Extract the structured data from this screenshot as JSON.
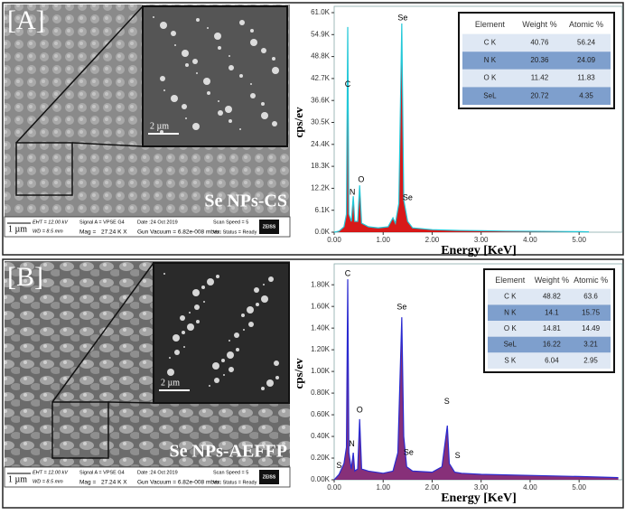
{
  "panels": [
    {
      "label": "[A]",
      "sample": "Se NPs-CS",
      "scale_main": "1 µm",
      "scale_inset": "2 µm",
      "info": [
        "EHT = 12.00 kV",
        "WD = 8.5 mm",
        "Signal A = VPSE G4",
        "Date :24 Oct 2019",
        "Mag = ",
        "27.24 K X",
        "Gun Vacuum = 6.82e-008 mbar",
        "Scan Speed = 5",
        "Vac Status = Ready",
        "ZEISS"
      ]
    },
    {
      "label": "[B]",
      "sample": "Se NPs-AEFFP",
      "scale_main": "1 µm",
      "scale_inset": "2 µm",
      "info": [
        "EHT = 12.00 kV",
        "WD = 8.5 mm",
        "Signal A = VPSE G4",
        "Date :24 Oct 2019",
        "Mag = ",
        "27.24 K X",
        "Gun Vacuum = 6.82e-008 mbar",
        "Scan Speed = 5",
        "Vac Status = Ready",
        "ZEISS"
      ]
    }
  ],
  "chart_data": [
    {
      "type": "area",
      "xlabel": "Energy [KeV]",
      "ylabel": "cps/ev",
      "color": "#22c8d8",
      "fill": "#d40000",
      "x": [
        0.0,
        0.1,
        0.2,
        0.25,
        0.277,
        0.3,
        0.35,
        0.39,
        0.42,
        0.48,
        0.52,
        0.56,
        0.7,
        0.9,
        1.1,
        1.2,
        1.25,
        1.32,
        1.38,
        1.42,
        1.5,
        1.6,
        2.0,
        2.5,
        3.0,
        3.5,
        4.0,
        4.5,
        5.0,
        5.2
      ],
      "values": [
        0,
        300,
        1500,
        5000,
        57000,
        5000,
        3000,
        10000,
        3000,
        3000,
        13000,
        2500,
        1500,
        1200,
        1500,
        4000,
        2500,
        8000,
        58000,
        9000,
        3000,
        1200,
        700,
        500,
        400,
        300,
        250,
        200,
        150,
        100
      ],
      "xlim": [
        0,
        5.9
      ],
      "ylim": [
        0,
        61000
      ],
      "xticks": [
        {
          "value": 0,
          "label": "0.00"
        },
        {
          "value": 1,
          "label": "1.00"
        },
        {
          "value": 2,
          "label": "2.00"
        },
        {
          "value": 3,
          "label": "3.00"
        },
        {
          "value": 4,
          "label": "4.00"
        },
        {
          "value": 5,
          "label": "5.00"
        }
      ],
      "yticks": [
        {
          "value": 0,
          "label": "0.0K"
        },
        {
          "value": 6100,
          "label": "6.1K"
        },
        {
          "value": 12200,
          "label": "12.2K"
        },
        {
          "value": 18300,
          "label": "18.3K"
        },
        {
          "value": 24400,
          "label": "24.4K"
        },
        {
          "value": 30500,
          "label": "30.5K"
        },
        {
          "value": 36600,
          "label": "36.6K"
        },
        {
          "value": 42700,
          "label": "42.7K"
        },
        {
          "value": 48800,
          "label": "48.8K"
        },
        {
          "value": 54900,
          "label": "54.9K"
        },
        {
          "value": 61000,
          "label": "61.0K"
        }
      ],
      "annotations": [
        {
          "text": "C",
          "x": 0.277,
          "y": 41000
        },
        {
          "text": "N",
          "x": 0.37,
          "y": 11000
        },
        {
          "text": "O",
          "x": 0.55,
          "y": 14500
        },
        {
          "text": "Se",
          "x": 1.4,
          "y": 59500
        },
        {
          "text": "Se",
          "x": 1.5,
          "y": 9500
        }
      ],
      "table": {
        "columns": [
          "Element",
          "Weight %",
          "Atomic %"
        ],
        "rows": [
          [
            "C K",
            40.76,
            56.24
          ],
          [
            "N K",
            20.36,
            24.09
          ],
          [
            "O K",
            11.42,
            11.83
          ],
          [
            "SeL",
            20.72,
            4.35
          ]
        ]
      }
    },
    {
      "type": "area",
      "xlabel": "Energy [KeV]",
      "ylabel": "cps/ev",
      "color": "#2a2ad0",
      "fill": "#7a1a6a",
      "x": [
        0.0,
        0.1,
        0.2,
        0.25,
        0.277,
        0.3,
        0.35,
        0.39,
        0.42,
        0.48,
        0.52,
        0.56,
        0.7,
        1.0,
        1.2,
        1.3,
        1.38,
        1.42,
        1.48,
        1.6,
        2.0,
        2.2,
        2.31,
        2.35,
        2.46,
        2.6,
        3.0,
        4.0,
        5.0,
        5.8
      ],
      "values": [
        0,
        50,
        150,
        300,
        1850,
        250,
        100,
        250,
        80,
        100,
        560,
        100,
        80,
        60,
        80,
        250,
        1500,
        400,
        120,
        80,
        70,
        120,
        500,
        150,
        70,
        60,
        50,
        40,
        30,
        20
      ],
      "xlim": [
        0,
        5.9
      ],
      "ylim": [
        0,
        1960
      ],
      "xticks": [
        {
          "value": 0,
          "label": "0.00"
        },
        {
          "value": 1,
          "label": "1.00"
        },
        {
          "value": 2,
          "label": "2.00"
        },
        {
          "value": 3,
          "label": "3.00"
        },
        {
          "value": 4,
          "label": "4.00"
        },
        {
          "value": 5,
          "label": "5.00"
        }
      ],
      "yticks": [
        {
          "value": 0,
          "label": "0.00K"
        },
        {
          "value": 200,
          "label": "0.20K"
        },
        {
          "value": 400,
          "label": "0.40K"
        },
        {
          "value": 600,
          "label": "0.60K"
        },
        {
          "value": 800,
          "label": "0.80K"
        },
        {
          "value": 1000,
          "label": "1.00K"
        },
        {
          "value": 1200,
          "label": "1.20K"
        },
        {
          "value": 1400,
          "label": "1.40K"
        },
        {
          "value": 1600,
          "label": "1.60K"
        },
        {
          "value": 1800,
          "label": "1.80K"
        }
      ],
      "annotations": [
        {
          "text": "S",
          "x": 0.1,
          "y": 130
        },
        {
          "text": "C",
          "x": 0.277,
          "y": 1900
        },
        {
          "text": "N",
          "x": 0.36,
          "y": 330
        },
        {
          "text": "O",
          "x": 0.52,
          "y": 640
        },
        {
          "text": "Se",
          "x": 1.38,
          "y": 1590
        },
        {
          "text": "Se",
          "x": 1.52,
          "y": 250
        },
        {
          "text": "S",
          "x": 2.3,
          "y": 720
        },
        {
          "text": "S",
          "x": 2.52,
          "y": 220
        }
      ],
      "table": {
        "columns": [
          "Element",
          "Weight %",
          "Atomic %"
        ],
        "rows": [
          [
            "C K",
            48.82,
            63.6
          ],
          [
            "N K",
            14.1,
            15.75
          ],
          [
            "O K",
            14.81,
            14.49
          ],
          [
            "SeL",
            16.22,
            3.21
          ],
          [
            "S K",
            6.04,
            2.95
          ]
        ]
      }
    }
  ]
}
